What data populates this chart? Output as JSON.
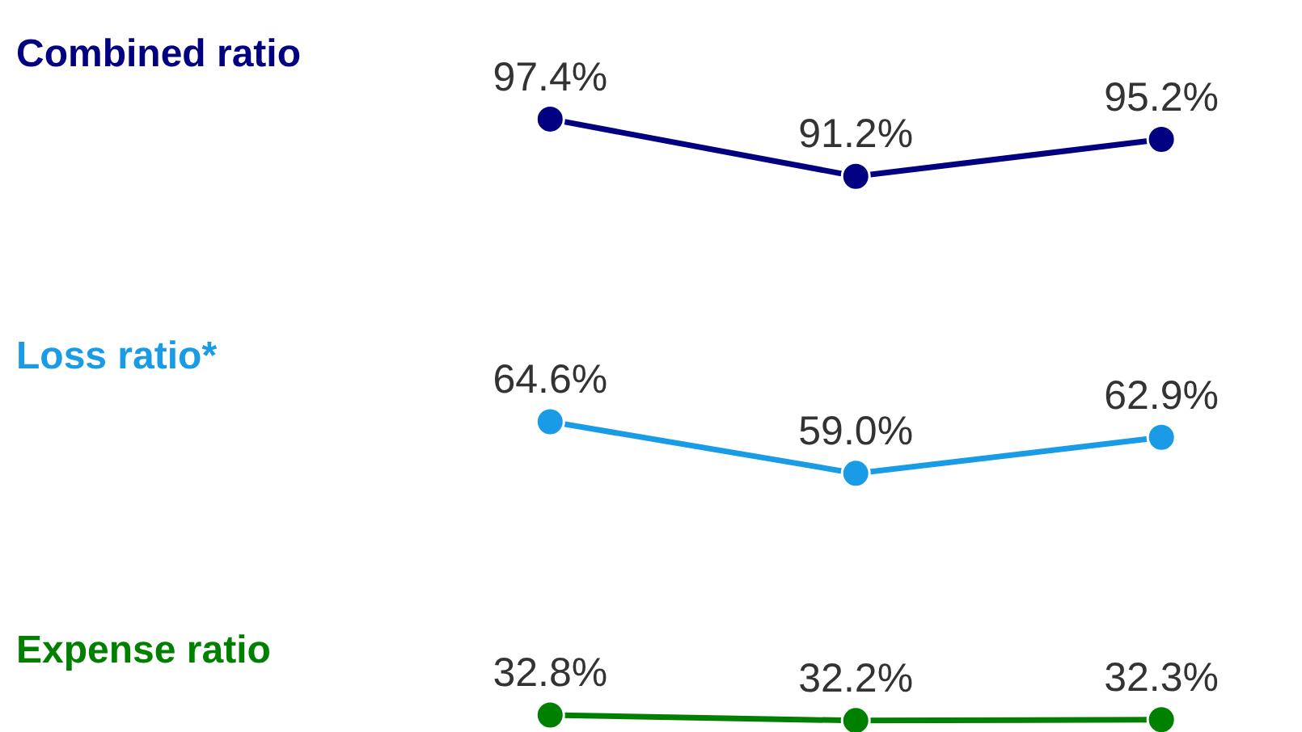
{
  "chart_data": {
    "type": "line",
    "categories": [
      null,
      null,
      null
    ],
    "series": [
      {
        "name": "Combined ratio",
        "color": "#000080",
        "values": [
          97.4,
          91.2,
          95.2
        ],
        "value_labels": [
          "97.4%",
          "91.2%",
          "95.2%"
        ]
      },
      {
        "name": "Loss ratio*",
        "color": "#1a9be6",
        "values": [
          64.6,
          59.0,
          62.9
        ],
        "value_labels": [
          "64.6%",
          "59.0%",
          "62.9%"
        ]
      },
      {
        "name": "Expense ratio",
        "color": "#008000",
        "values": [
          32.8,
          32.2,
          32.3
        ],
        "value_labels": [
          "32.8%",
          "32.2%",
          "32.3%"
        ]
      }
    ],
    "marker": "circle",
    "line_style": "solid",
    "legend": false
  }
}
